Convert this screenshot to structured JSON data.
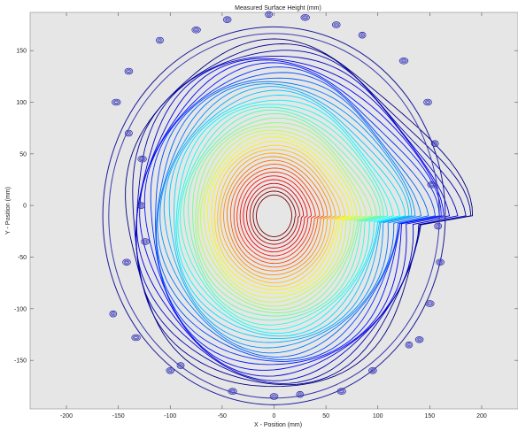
{
  "chart_data": {
    "type": "contour",
    "title": "Measured Surface Height (mm)",
    "xlabel": "X - Position (mm)",
    "ylabel": "Y - Position (mm)",
    "xlim": [
      -235,
      235
    ],
    "ylim": [
      -197,
      187
    ],
    "xticks": [
      -200,
      -150,
      -100,
      -50,
      0,
      50,
      100,
      150,
      200
    ],
    "yticks": [
      150,
      100,
      50,
      0,
      -50,
      -100,
      -150
    ],
    "grid": false,
    "colormap": "jet",
    "plot_background": "#e6e6e6",
    "center": [
      0,
      -10
    ],
    "outer_boundary_radius": {
      "x": 165,
      "y": 183
    },
    "inner_contour_levels": 40,
    "small_loop_centers": [
      [
        -128,
        0
      ],
      [
        -124,
        -35
      ],
      [
        -127,
        45
      ],
      [
        -140,
        70
      ],
      [
        -142,
        -55
      ],
      [
        -152,
        100
      ],
      [
        -155,
        -105
      ],
      [
        -140,
        130
      ],
      [
        -133,
        -128
      ],
      [
        -110,
        160
      ],
      [
        -100,
        -160
      ],
      [
        -75,
        170
      ],
      [
        -90,
        -155
      ],
      [
        -45,
        180
      ],
      [
        -40,
        -180
      ],
      [
        -5,
        185
      ],
      [
        0,
        -185
      ],
      [
        30,
        182
      ],
      [
        25,
        -183
      ],
      [
        60,
        175
      ],
      [
        65,
        -180
      ],
      [
        85,
        165
      ],
      [
        95,
        -160
      ],
      [
        125,
        140
      ],
      [
        130,
        -135
      ],
      [
        148,
        100
      ],
      [
        150,
        -95
      ],
      [
        155,
        60
      ],
      [
        160,
        -55
      ],
      [
        152,
        20
      ],
      [
        158,
        -20
      ],
      [
        140,
        -130
      ]
    ]
  }
}
